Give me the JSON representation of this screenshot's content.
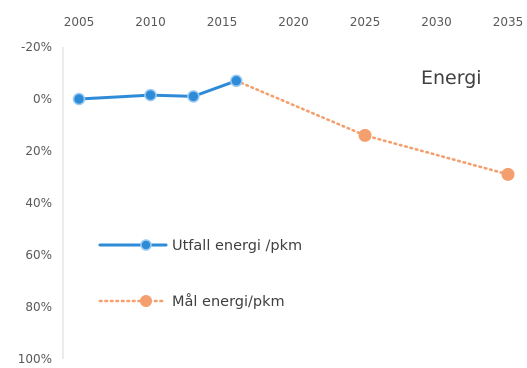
{
  "chart_data": {
    "type": "line",
    "title": "Energi",
    "x_ticks": [
      "2005",
      "2010",
      "2015",
      "2020",
      "2025",
      "2030",
      "2035"
    ],
    "y_ticks": [
      "-20%",
      "0%",
      "20%",
      "40%",
      "60%",
      "80%",
      "100%"
    ],
    "xlim": [
      2005,
      2035
    ],
    "ylim": [
      -20,
      100
    ],
    "y_axis_inverted": true,
    "x_axis_position": "top",
    "grid": false,
    "legend_position": "center-left",
    "series": [
      {
        "name": "Utfall energi /pkm",
        "style": "solid-line-with-markers",
        "color": "#2E8BD8",
        "points": [
          {
            "x": 2005,
            "y": 0
          },
          {
            "x": 2010,
            "y": -1.5
          },
          {
            "x": 2013,
            "y": -1
          },
          {
            "x": 2016,
            "y": -7
          }
        ]
      },
      {
        "name": "Mål energi/pkm",
        "style": "dotted-line-with-markers",
        "color": "#F4A06E",
        "points": [
          {
            "x": 2016,
            "y": -7
          },
          {
            "x": 2025,
            "y": 14
          },
          {
            "x": 2035,
            "y": 29
          }
        ]
      }
    ]
  }
}
